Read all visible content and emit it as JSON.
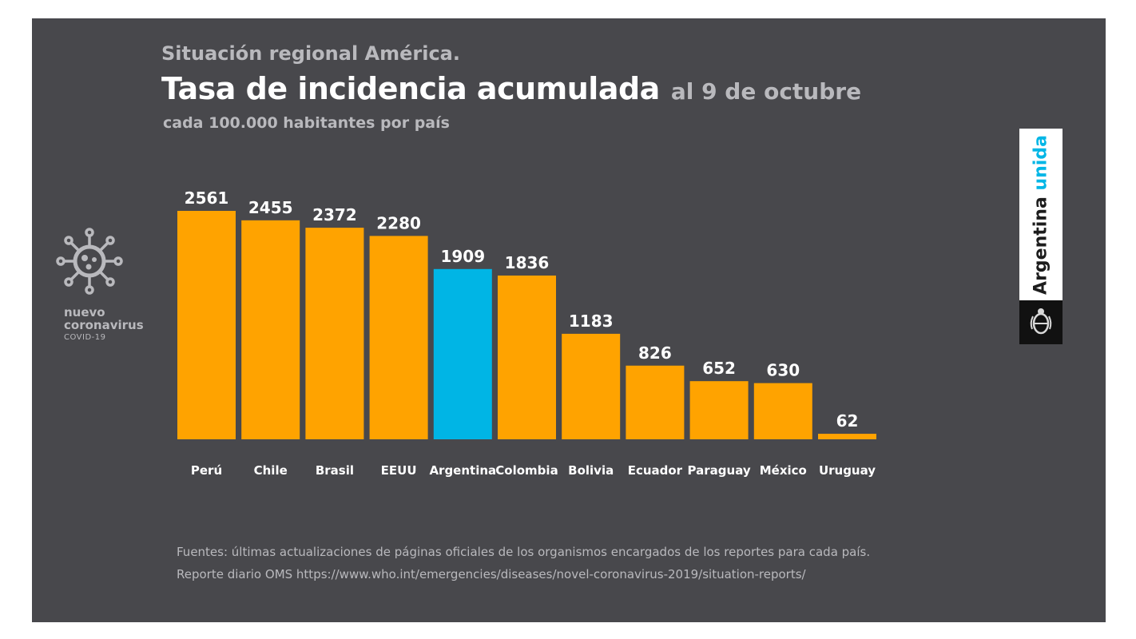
{
  "header": {
    "kicker": "Situación regional América.",
    "title": "Tasa de incidencia acumulada",
    "date": "al 9 de octubre",
    "subtitle": "cada 100.000 habitantes por país"
  },
  "logo": {
    "icon": "coronavirus-icon",
    "label": "nuevo coronavirus",
    "sublabel": "COVID-19"
  },
  "brand": {
    "text_main": "Argentina ",
    "text_accent": "unida",
    "emblem": "argentina-coat-of-arms-icon"
  },
  "footer": {
    "line1": "Fuentes: últimas actualizaciones de páginas oficiales de los organismos encargados de los reportes para cada país.",
    "line2": "Reporte diario OMS https://www.who.int/emergencies/diseases/novel-coronavirus-2019/situation-reports/"
  },
  "colors": {
    "panel_background": "#48484c",
    "bar_default": "#ffa300",
    "bar_highlight": "#00b5e5",
    "label_text": "#ffffff",
    "muted_text": "#b9b9bd",
    "brand_accent": "#00b6e6"
  },
  "chart_data": {
    "type": "bar",
    "title": "Tasa de incidencia acumulada",
    "subtitle": "cada 100.000 habitantes por país",
    "categories": [
      "Perú",
      "Chile",
      "Brasil",
      "EEUU",
      "Argentina",
      "Colombia",
      "Bolivia",
      "Ecuador",
      "Paraguay",
      "México",
      "Uruguay"
    ],
    "values": [
      2561,
      2455,
      2372,
      2280,
      1909,
      1836,
      1183,
      826,
      652,
      630,
      62
    ],
    "highlight": "Argentina",
    "ylim": [
      0,
      2561
    ],
    "grid": false,
    "legend": "none"
  }
}
